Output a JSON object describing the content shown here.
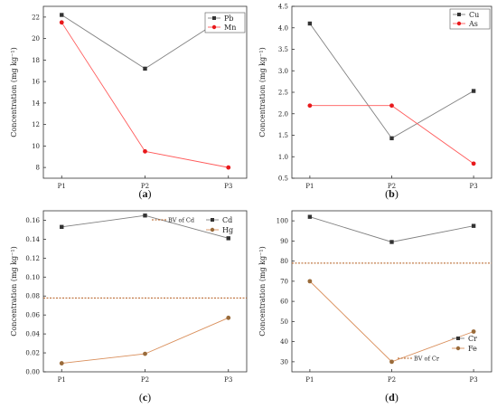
{
  "chart_data": [
    {
      "id": "a",
      "type": "line",
      "caption": "a",
      "categories": [
        "P1",
        "P2",
        "P3"
      ],
      "ylabel": "Concentration (mg kg⁻¹)",
      "ylim": [
        7,
        23
      ],
      "yticks": [
        8,
        10,
        12,
        14,
        16,
        18,
        20,
        22
      ],
      "legend_position": "top-right",
      "series": [
        {
          "name": "Pb",
          "values": [
            22.2,
            17.2,
            22.2
          ],
          "color": "#808080",
          "marker": "square"
        },
        {
          "name": "Mn",
          "values": [
            21.5,
            9.5,
            8.0
          ],
          "color": "#ff5a5a",
          "marker": "circle"
        }
      ],
      "reference_lines": []
    },
    {
      "id": "b",
      "type": "line",
      "caption": "b",
      "categories": [
        "P1",
        "P2",
        "P3"
      ],
      "ylabel": "Concentration (mg kg⁻¹)",
      "ylim": [
        0.5,
        4.5
      ],
      "yticks": [
        0.5,
        1.0,
        1.5,
        2.0,
        2.5,
        3.0,
        3.5,
        4.0,
        4.5
      ],
      "legend_position": "top-right",
      "series": [
        {
          "name": "Cu",
          "values": [
            4.1,
            1.43,
            2.53
          ],
          "color": "#808080",
          "marker": "square"
        },
        {
          "name": "As",
          "values": [
            2.19,
            2.19,
            0.84
          ],
          "color": "#ff5a5a",
          "marker": "circle"
        }
      ],
      "reference_lines": []
    },
    {
      "id": "c",
      "type": "line",
      "caption": "c",
      "categories": [
        "P1",
        "P2",
        "P3"
      ],
      "ylabel": "Concentration (mg kg⁻¹)",
      "ylim": [
        0.0,
        0.17
      ],
      "yticks": [
        0.0,
        0.02,
        0.04,
        0.06,
        0.08,
        0.1,
        0.12,
        0.14,
        0.16
      ],
      "legend_position": "top-right",
      "series": [
        {
          "name": "Cd",
          "values": [
            0.153,
            0.165,
            0.141
          ],
          "color": "#808080",
          "marker": "square"
        },
        {
          "name": "Hg",
          "values": [
            0.009,
            0.019,
            0.057
          ],
          "color": "#d98e5a",
          "marker": "circle"
        }
      ],
      "reference_lines": [
        {
          "name": "BV of Cd",
          "value": 0.078,
          "color": "#b35c1e"
        }
      ]
    },
    {
      "id": "d",
      "type": "line",
      "caption": "d",
      "categories": [
        "P1",
        "P2",
        "P3"
      ],
      "ylabel": "Concentration (mg kg⁻¹)",
      "ylim": [
        25,
        105
      ],
      "yticks": [
        30,
        40,
        50,
        60,
        70,
        80,
        90,
        100
      ],
      "legend_position": "bottom-right",
      "series": [
        {
          "name": "Cr",
          "values": [
            102,
            89.5,
            97.5
          ],
          "color": "#808080",
          "marker": "square"
        },
        {
          "name": "Fe",
          "values": [
            70,
            30,
            45
          ],
          "color": "#d98e5a",
          "marker": "circle"
        }
      ],
      "reference_lines": [
        {
          "name": "BV of Cr",
          "value": 79,
          "color": "#b35c1e"
        }
      ]
    }
  ]
}
